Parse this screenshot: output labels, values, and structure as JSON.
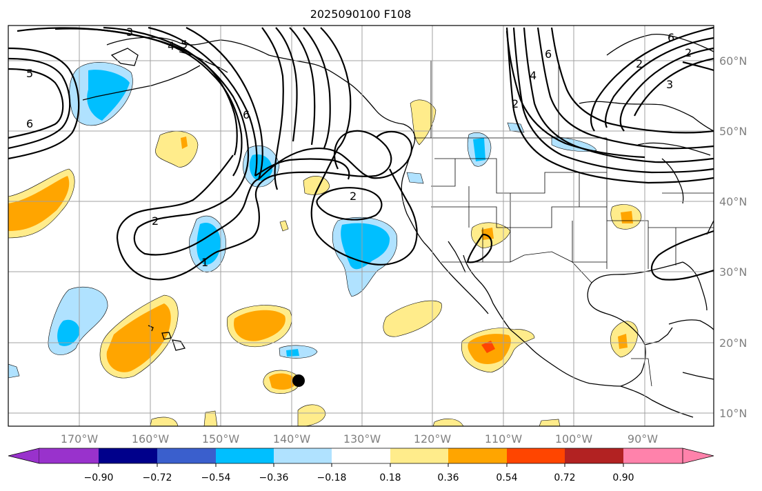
{
  "title": "2025090100 F108",
  "colors": {
    "neg_0_90": "#9932cc",
    "neg_0_72": "#00008b",
    "neg_0_54": "#3a5fcd",
    "neg_0_36": "#00bfff",
    "neg_0_18": "#b0e2ff",
    "neutral": "#ffffff",
    "pos_0_18": "#ffec8b",
    "pos_0_36": "#ffa500",
    "pos_0_54": "#ff4500",
    "pos_0_72": "#b22222",
    "pos_0_90": "#ff82ab"
  },
  "map": {
    "lon_labels": [
      "170°W",
      "160°W",
      "150°W",
      "140°W",
      "130°W",
      "120°W",
      "110°W",
      "100°W",
      "90°W"
    ],
    "lat_labels": [
      "60°N",
      "50°N",
      "40°N",
      "30°N",
      "20°N",
      "10°N"
    ],
    "contour_labels": [
      "5",
      "6",
      "3",
      "4",
      "5",
      "6",
      "2",
      "1",
      "2",
      "6",
      "4",
      "2",
      "2",
      "3",
      "6",
      "2"
    ],
    "marker": "storm-position-dot"
  },
  "colorbar": {
    "tick_labels": [
      "−0.90",
      "−0.72",
      "−0.54",
      "−0.36",
      "−0.18",
      "0.18",
      "0.36",
      "0.54",
      "0.72",
      "0.90"
    ]
  }
}
